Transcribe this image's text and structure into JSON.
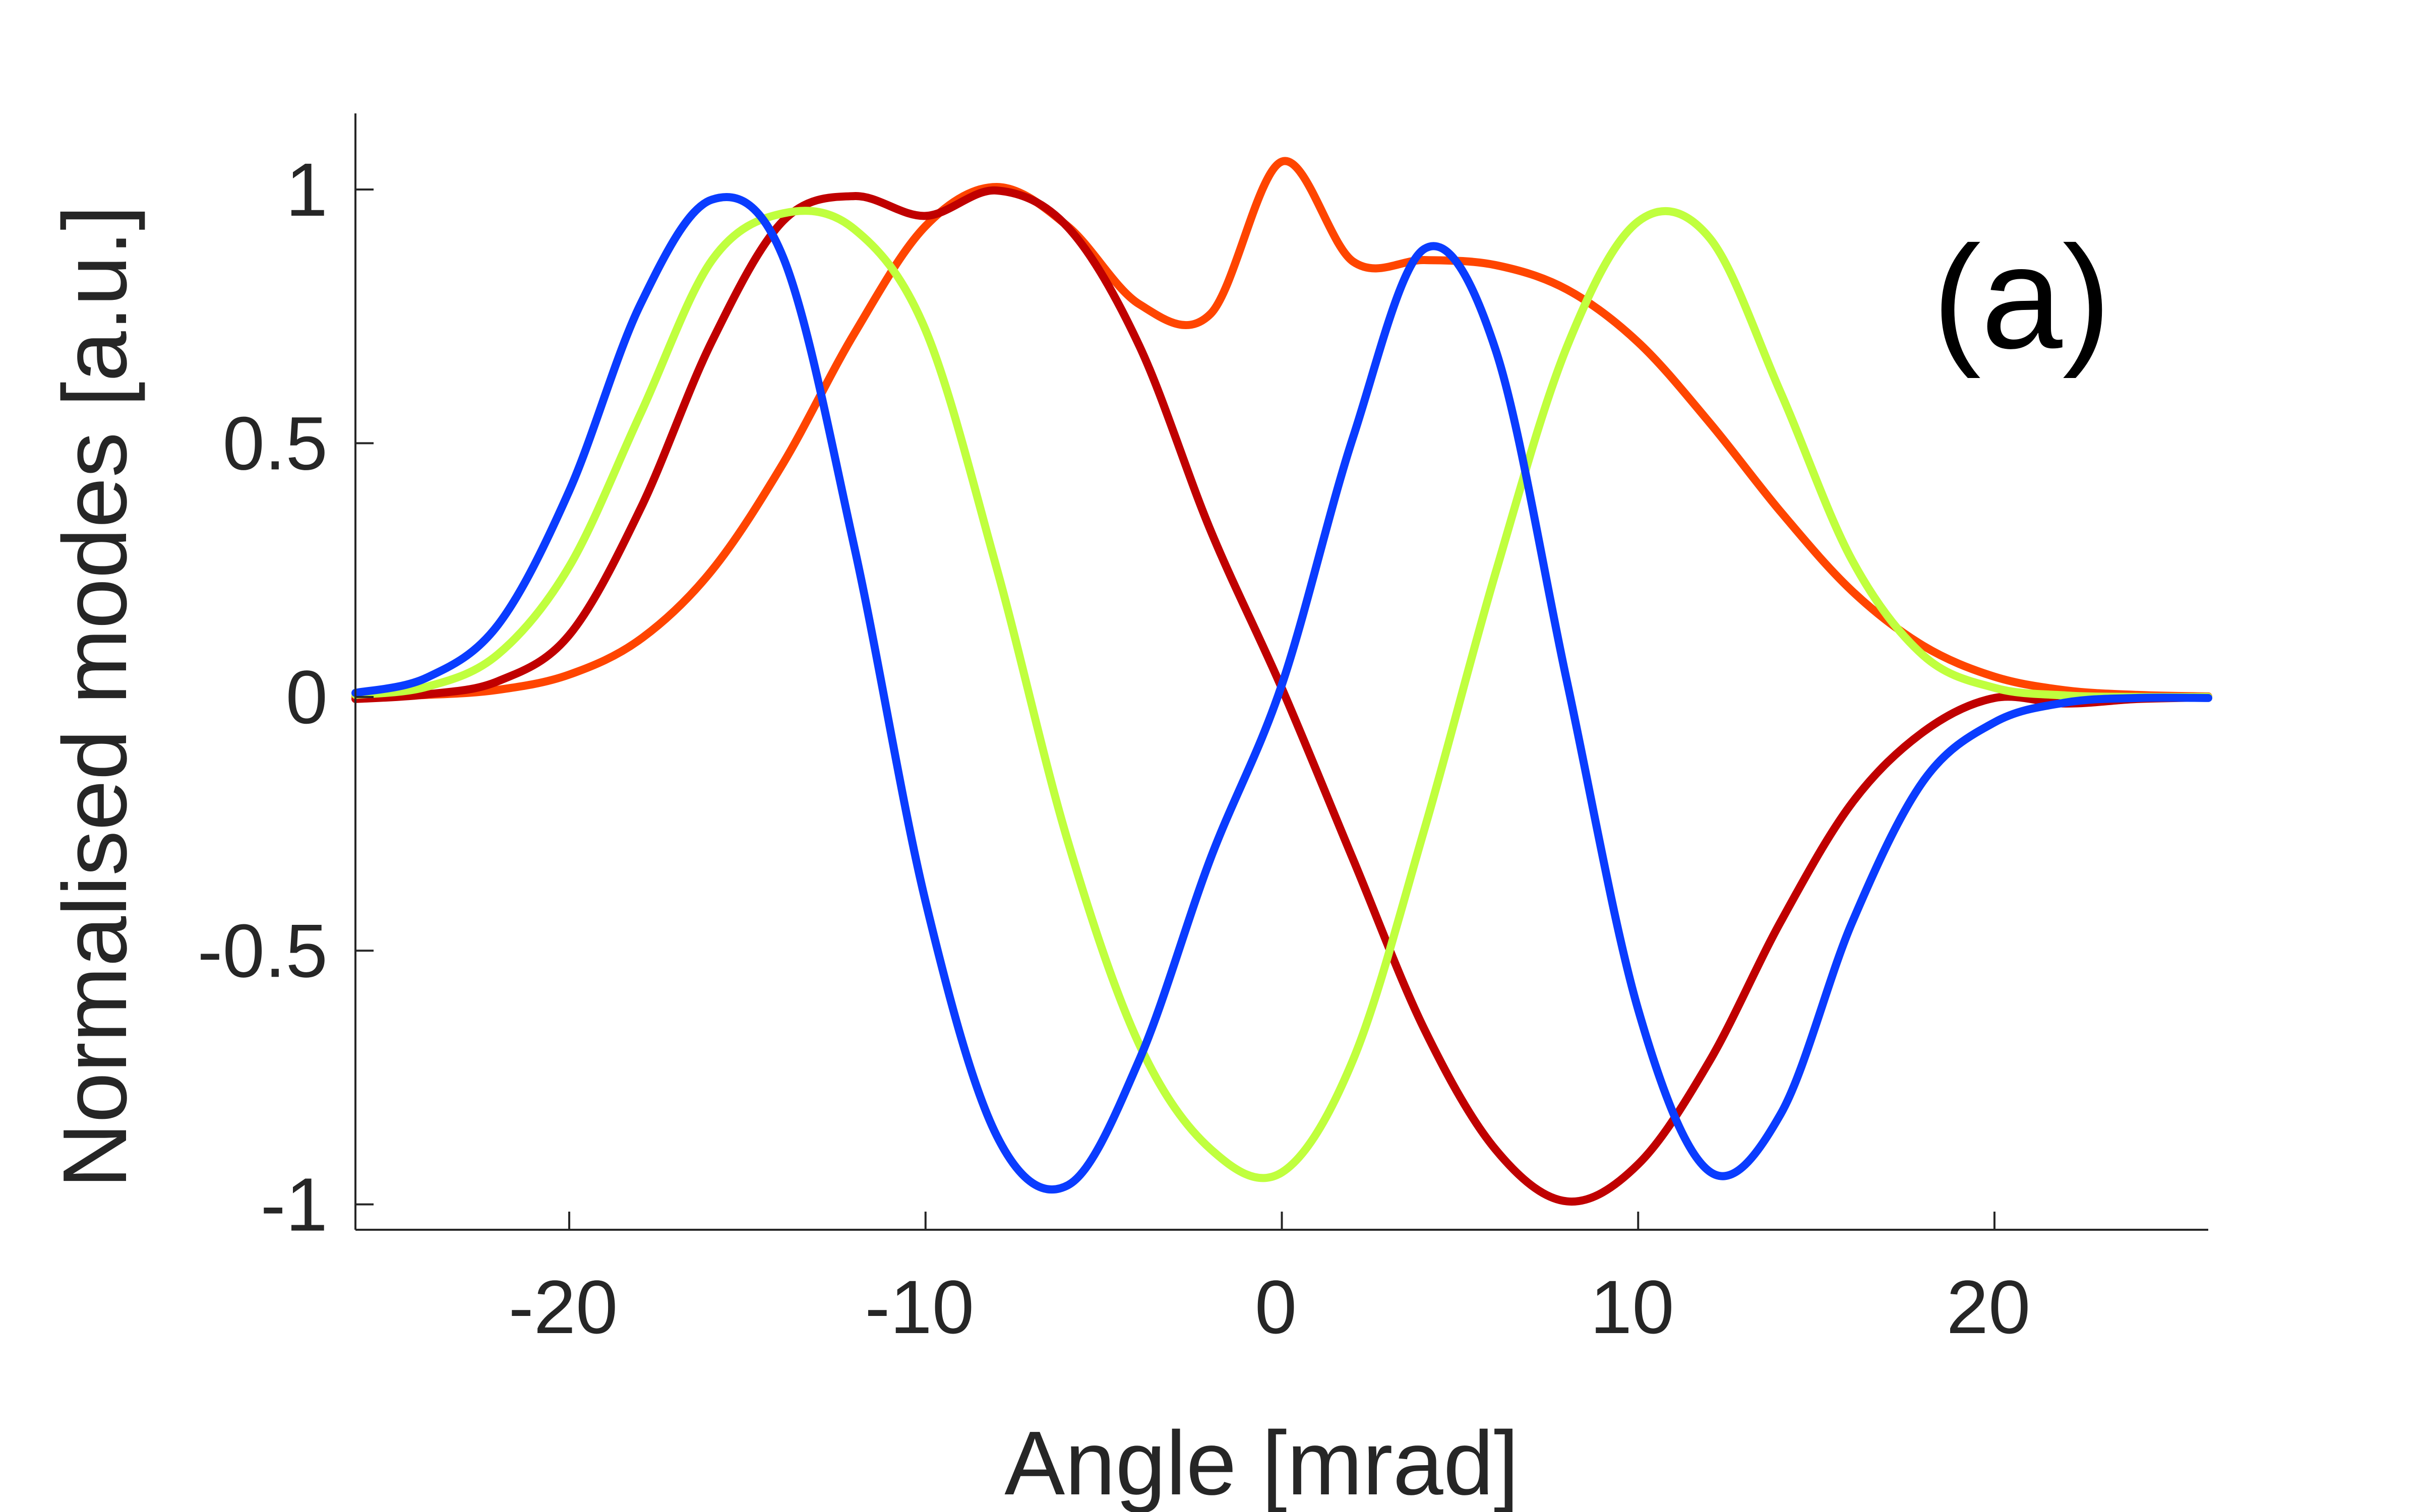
{
  "chart_data": {
    "type": "line",
    "xlabel": "Angle [mrad]",
    "ylabel": "Normalised modes [a.u.]",
    "panel_label": "(a)",
    "xlim": [
      -26,
      26
    ],
    "ylim": [
      -1.05,
      1.15
    ],
    "xticks": [
      -20,
      -10,
      0,
      10,
      20
    ],
    "xtick_labels": [
      "-20",
      "-10",
      "0",
      "10",
      "20"
    ],
    "yticks": [
      -1,
      -0.5,
      0,
      0.5,
      1
    ],
    "ytick_labels": [
      "-1",
      "-0.5",
      "0",
      "0.5",
      "1"
    ],
    "grid": false,
    "x": [
      -26,
      -24,
      -22,
      -20,
      -18,
      -16,
      -14,
      -12,
      -10,
      -8,
      -6,
      -4,
      -2,
      0,
      2,
      4,
      6,
      8,
      10,
      12,
      14,
      16,
      18,
      20,
      22,
      24,
      26
    ],
    "series": [
      {
        "color": "#ff4500",
        "values": [
          0.001,
          0.004,
          0.014,
          0.044,
          0.114,
          0.249,
          0.46,
          0.716,
          0.928,
          1.005,
          0.927,
          0.774,
          0.755,
          1.055,
          0.858,
          0.861,
          0.851,
          0.803,
          0.699,
          0.541,
          0.365,
          0.209,
          0.101,
          0.04,
          0.013,
          0.004,
          0.001
        ]
      },
      {
        "color": "#c00000",
        "values": [
          -0.004,
          0.005,
          0.031,
          0.122,
          0.371,
          0.7,
          0.938,
          0.987,
          0.948,
          0.998,
          0.925,
          0.692,
          0.328,
          0.017,
          -0.32,
          -0.655,
          -0.892,
          -0.994,
          -0.921,
          -0.718,
          -0.443,
          -0.209,
          -0.069,
          -0.002,
          -0.013,
          -0.004,
          -0.001
        ]
      },
      {
        "color": "#c0ff3e",
        "values": [
          0.004,
          0.02,
          0.084,
          0.257,
          0.558,
          0.86,
          0.953,
          0.922,
          0.723,
          0.253,
          -0.286,
          -0.685,
          -0.891,
          -0.937,
          -0.715,
          -0.261,
          0.245,
          0.69,
          0.937,
          0.905,
          0.6,
          0.27,
          0.082,
          0.018,
          0.003,
          0.0,
          0.0
        ]
      },
      {
        "color": "#0a3cff",
        "values": [
          0.008,
          0.038,
          0.142,
          0.406,
          0.774,
          0.98,
          0.867,
          0.296,
          -0.403,
          -0.865,
          -0.962,
          -0.715,
          -0.318,
          0.024,
          0.512,
          0.883,
          0.684,
          0.031,
          -0.616,
          -0.935,
          -0.822,
          -0.445,
          -0.166,
          -0.05,
          -0.011,
          -0.002,
          -0.002
        ]
      }
    ]
  }
}
